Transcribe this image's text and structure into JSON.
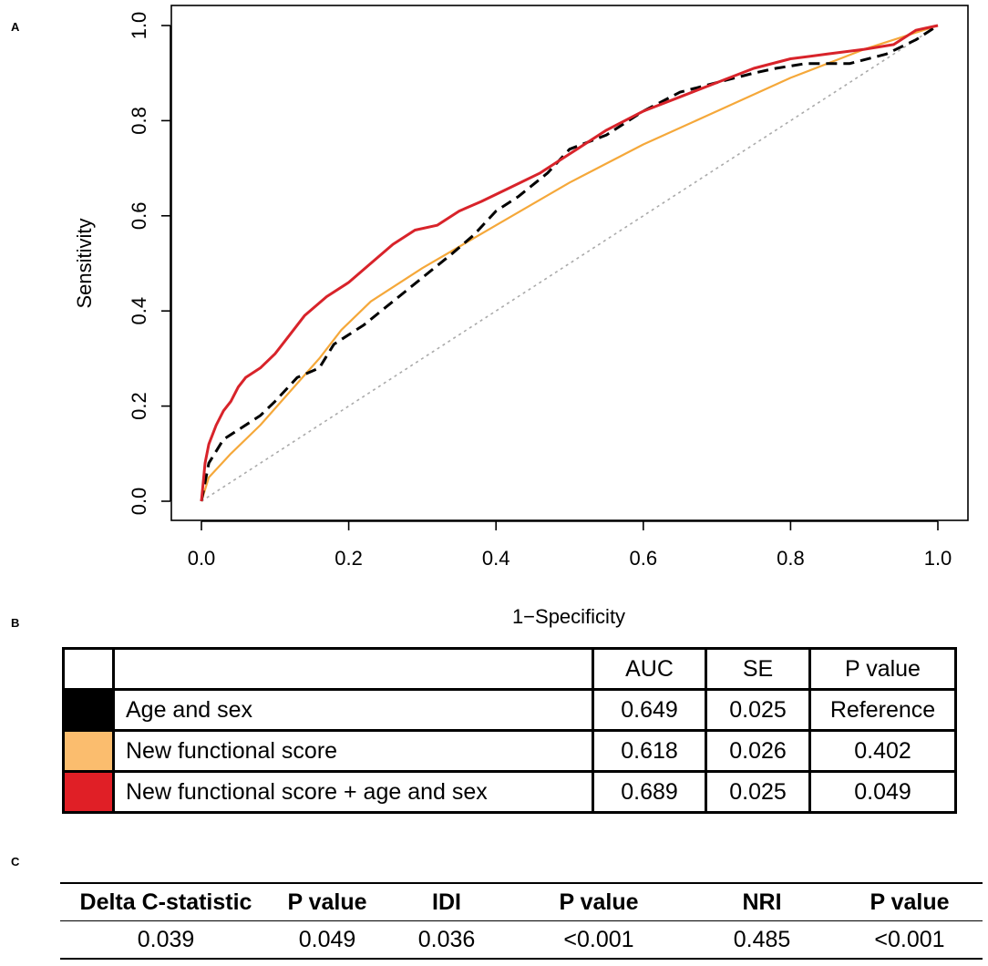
{
  "panels": {
    "a": "A",
    "b": "B",
    "c": "C"
  },
  "chart_data": {
    "type": "line",
    "title": "",
    "xlabel": "1−Specificity",
    "ylabel": "Sensitivity",
    "xlim": [
      0.0,
      1.0
    ],
    "ylim": [
      0.0,
      1.0
    ],
    "xticks": [
      "0.0",
      "0.2",
      "0.4",
      "0.6",
      "0.8",
      "1.0"
    ],
    "yticks": [
      "0.0",
      "0.2",
      "0.4",
      "0.6",
      "0.8",
      "1.0"
    ],
    "reference_line": {
      "x": [
        0,
        1
      ],
      "y": [
        0,
        1
      ],
      "color": "#aaaaaa",
      "style": "dotted"
    },
    "series": [
      {
        "name": "Age and sex",
        "color": "#000000",
        "style": "dashed",
        "x": [
          0,
          0.01,
          0.03,
          0.05,
          0.08,
          0.1,
          0.13,
          0.16,
          0.18,
          0.22,
          0.26,
          0.3,
          0.34,
          0.37,
          0.4,
          0.43,
          0.47,
          0.5,
          0.55,
          0.6,
          0.65,
          0.7,
          0.75,
          0.78,
          0.82,
          0.88,
          0.93,
          0.97,
          1.0
        ],
        "y": [
          0,
          0.08,
          0.13,
          0.15,
          0.18,
          0.21,
          0.26,
          0.28,
          0.33,
          0.37,
          0.42,
          0.47,
          0.52,
          0.56,
          0.61,
          0.64,
          0.69,
          0.74,
          0.77,
          0.82,
          0.86,
          0.88,
          0.9,
          0.91,
          0.92,
          0.92,
          0.94,
          0.97,
          1.0
        ]
      },
      {
        "name": "New functional score",
        "color": "#f5a83a",
        "style": "solid",
        "x": [
          0,
          0.01,
          0.04,
          0.08,
          0.12,
          0.16,
          0.19,
          0.23,
          0.3,
          0.4,
          0.5,
          0.6,
          0.7,
          0.8,
          0.9,
          1.0
        ],
        "y": [
          0,
          0.05,
          0.1,
          0.16,
          0.23,
          0.3,
          0.36,
          0.42,
          0.49,
          0.58,
          0.67,
          0.75,
          0.82,
          0.89,
          0.95,
          1.0
        ]
      },
      {
        "name": "New functional score + age and sex",
        "color": "#d8232a",
        "style": "solid",
        "x": [
          0,
          0.005,
          0.01,
          0.02,
          0.03,
          0.04,
          0.05,
          0.06,
          0.08,
          0.1,
          0.12,
          0.14,
          0.17,
          0.2,
          0.23,
          0.26,
          0.29,
          0.32,
          0.35,
          0.38,
          0.42,
          0.46,
          0.5,
          0.55,
          0.6,
          0.65,
          0.7,
          0.75,
          0.8,
          0.85,
          0.9,
          0.94,
          0.97,
          1.0
        ],
        "y": [
          0,
          0.08,
          0.12,
          0.16,
          0.19,
          0.21,
          0.24,
          0.26,
          0.28,
          0.31,
          0.35,
          0.39,
          0.43,
          0.46,
          0.5,
          0.54,
          0.57,
          0.58,
          0.61,
          0.63,
          0.66,
          0.69,
          0.73,
          0.78,
          0.82,
          0.85,
          0.88,
          0.91,
          0.93,
          0.94,
          0.95,
          0.96,
          0.99,
          1.0
        ]
      }
    ]
  },
  "auc_table": {
    "headers": [
      "",
      "",
      "AUC",
      "SE",
      "P value"
    ],
    "rows": [
      {
        "label": "Age and sex",
        "swatch_color": "#000000",
        "auc": "0.649",
        "se": "0.025",
        "p": "Reference"
      },
      {
        "label": "New functional score",
        "swatch_color": "#fbbd6e",
        "auc": "0.618",
        "se": "0.026",
        "p": "0.402"
      },
      {
        "label": "New functional score + age and sex",
        "swatch_color": "#e01f26",
        "auc": "0.689",
        "se": "0.025",
        "p": "0.049"
      }
    ]
  },
  "stats_table": {
    "headers": [
      "Delta C-statistic",
      "P value",
      "IDI",
      "P value",
      "NRI",
      "P value"
    ],
    "values": [
      "0.039",
      "0.049",
      "0.036",
      "<0.001",
      "0.485",
      "<0.001"
    ]
  }
}
